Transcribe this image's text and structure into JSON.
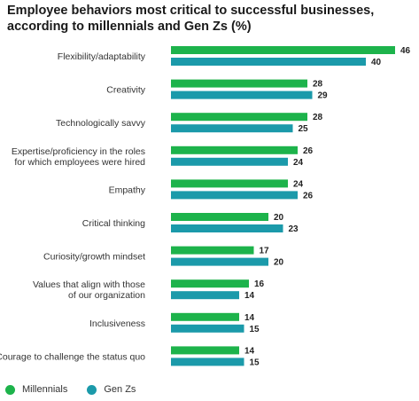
{
  "title_line1": "Employee behaviors most critical to successful businesses,",
  "title_line2": "according to millennials and Gen Zs (%)",
  "colors": {
    "millennials": "#1db34b",
    "genz": "#1b9aaa"
  },
  "legend": [
    {
      "key": "millennials",
      "label": "Millennials"
    },
    {
      "key": "genz",
      "label": "Gen Zs"
    }
  ],
  "chart_data": {
    "type": "bar",
    "orientation": "horizontal",
    "title": "Employee behaviors most critical to successful businesses, according to millennials and Gen Zs (%)",
    "categories": [
      [
        "Flexibility/adaptability"
      ],
      [
        "Creativity"
      ],
      [
        "Technologically savvy"
      ],
      [
        "Expertise/proficiency in the roles",
        "for which employees were hired"
      ],
      [
        "Empathy"
      ],
      [
        "Critical thinking"
      ],
      [
        "Curiosity/growth mindset"
      ],
      [
        "Values that align with those",
        "of our organization"
      ],
      [
        "Inclusiveness"
      ],
      [
        "Courage to challenge the status quo"
      ]
    ],
    "series": [
      {
        "name": "Millennials",
        "values": [
          46,
          28,
          28,
          26,
          24,
          20,
          17,
          16,
          14,
          14
        ]
      },
      {
        "name": "Gen Zs",
        "values": [
          40,
          29,
          25,
          24,
          26,
          23,
          20,
          14,
          15,
          15
        ]
      }
    ],
    "xlim": [
      0,
      46
    ],
    "grid": false,
    "data_labels": true,
    "legend_position": "bottom-left"
  }
}
